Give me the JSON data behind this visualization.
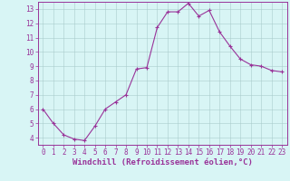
{
  "x": [
    0,
    1,
    2,
    3,
    4,
    5,
    6,
    7,
    8,
    9,
    10,
    11,
    12,
    13,
    14,
    15,
    16,
    17,
    18,
    19,
    20,
    21,
    22,
    23
  ],
  "y": [
    6.0,
    5.0,
    4.2,
    3.9,
    3.8,
    4.8,
    6.0,
    6.5,
    7.0,
    8.8,
    8.9,
    11.7,
    12.8,
    12.8,
    13.4,
    12.5,
    12.9,
    11.4,
    10.4,
    9.5,
    9.1,
    9.0,
    8.7,
    8.6
  ],
  "line_color": "#993399",
  "marker": "+",
  "marker_size": 3,
  "marker_lw": 0.8,
  "bg_color": "#d8f5f5",
  "grid_color": "#aacccc",
  "xlabel": "Windchill (Refroidissement éolien,°C)",
  "xlim": [
    -0.5,
    23.5
  ],
  "ylim": [
    3.5,
    13.5
  ],
  "yticks": [
    4,
    5,
    6,
    7,
    8,
    9,
    10,
    11,
    12,
    13
  ],
  "xticks": [
    0,
    1,
    2,
    3,
    4,
    5,
    6,
    7,
    8,
    9,
    10,
    11,
    12,
    13,
    14,
    15,
    16,
    17,
    18,
    19,
    20,
    21,
    22,
    23
  ],
  "tick_color": "#993399",
  "tick_fontsize": 5.5,
  "xlabel_fontsize": 6.5,
  "xlabel_color": "#993399",
  "spine_color": "#993399",
  "line_width": 0.8
}
